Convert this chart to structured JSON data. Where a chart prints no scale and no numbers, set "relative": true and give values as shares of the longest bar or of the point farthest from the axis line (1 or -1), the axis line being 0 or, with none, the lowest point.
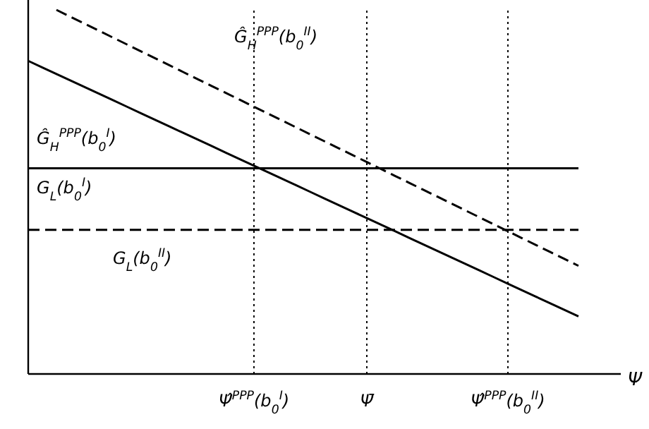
{
  "chart_data": {
    "type": "line",
    "relative": true,
    "xlabel": "Ψ",
    "categories": [
      null,
      null,
      null,
      null,
      null,
      null,
      null,
      null,
      null,
      null,
      null,
      null,
      null,
      null,
      null,
      null,
      "Ψ̂$^{PPP}$(b$_{0}$$^{I}$)",
      null,
      null,
      null,
      null,
      null,
      null,
      null,
      "Ψ̄",
      null,
      null,
      null,
      null,
      null,
      null,
      null,
      null,
      null,
      "Ψ̂$^{PPP}$(b$_{0}$$^{II}$)",
      null,
      null,
      null,
      null,
      null
    ],
    "series": [
      {
        "color": "#000000",
        "line_style": "dashed",
        "values": [
          null,
          null,
          1.0,
          0.981,
          0.962,
          0.943,
          0.924,
          0.905,
          0.886,
          0.867,
          0.848,
          0.829,
          0.81,
          0.791,
          0.772,
          0.753,
          0.734,
          0.715,
          0.696,
          0.677,
          0.658,
          0.639,
          0.62,
          0.601,
          0.582,
          0.563,
          0.544,
          0.525,
          0.506,
          0.487,
          0.468,
          0.449,
          0.43,
          0.411,
          0.392,
          0.373,
          0.354,
          0.335,
          0.316,
          0.297
        ]
      },
      {
        "color": "#000000",
        "line_style": "solid",
        "values": [
          0.86,
          0.842,
          0.824,
          0.806,
          0.788,
          0.77,
          0.752,
          0.734,
          0.716,
          0.698,
          0.68,
          0.662,
          0.644,
          0.626,
          0.608,
          0.59,
          0.572,
          0.554,
          0.536,
          0.518,
          0.5,
          0.482,
          0.464,
          0.446,
          0.428,
          0.41,
          0.392,
          0.374,
          0.356,
          0.338,
          0.32,
          0.302,
          0.284,
          0.266,
          0.248,
          0.23,
          0.212,
          0.194,
          0.176,
          0.158
        ]
      },
      {
        "color": "#000000",
        "line_style": "solid",
        "values": [
          0.565,
          0.565,
          0.565,
          0.565,
          0.565,
          0.565,
          0.565,
          0.565,
          0.565,
          0.565,
          0.565,
          0.565,
          0.565,
          0.565,
          0.565,
          0.565,
          0.565,
          0.565,
          0.565,
          0.565,
          0.565,
          0.565,
          0.565,
          0.565,
          0.565,
          0.565,
          0.565,
          0.565,
          0.565,
          0.565,
          0.565,
          0.565,
          0.565,
          0.565,
          0.565,
          0.565,
          0.565,
          0.565,
          0.565,
          0.565
        ]
      },
      {
        "color": "#000000",
        "line_style": "dashed",
        "values": [
          0.396,
          0.396,
          0.396,
          0.396,
          0.396,
          0.396,
          0.396,
          0.396,
          0.396,
          0.396,
          0.396,
          0.396,
          0.396,
          0.396,
          0.396,
          0.396,
          0.396,
          0.396,
          0.396,
          0.396,
          0.396,
          0.396,
          0.396,
          0.396,
          0.396,
          0.396,
          0.396,
          0.396,
          0.396,
          0.396,
          0.396,
          0.396,
          0.396,
          0.396,
          0.396,
          0.396,
          0.396,
          0.396,
          0.396,
          0.396
        ]
      }
    ],
    "ref_lines": [
      {
        "axis": "x",
        "value": "Ψ̂$^{PPP}$(b$_{0}$$^{I}$)",
        "line_style": "dotted",
        "color": "#000000"
      },
      {
        "axis": "x",
        "value": "Ψ̄",
        "line_style": "dotted",
        "color": "#000000"
      },
      {
        "axis": "x",
        "value": "Ψ̂$^{PPP}$(b$_{0}$$^{II}$)",
        "line_style": "dotted",
        "color": "#000000"
      }
    ],
    "annotations": [
      "Ĝ$_{H}$$^{PPP}$(b$_{0}$$^{II}$)",
      "Ĝ$_{H}$$^{PPP}$(b$_{0}$$^{I}$)",
      "G$_{L}$(b$_{0}$$^{I}$)",
      "G$_{L}$(b$_{0}$$^{II}$)"
    ]
  }
}
